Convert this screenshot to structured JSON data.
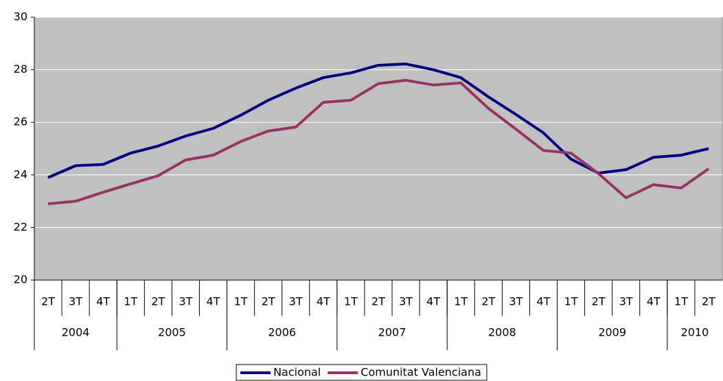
{
  "chart_data": {
    "type": "line",
    "categories": [
      "2T",
      "3T",
      "4T",
      "1T",
      "2T",
      "3T",
      "4T",
      "1T",
      "2T",
      "3T",
      "4T",
      "1T",
      "2T",
      "3T",
      "4T",
      "1T",
      "2T",
      "3T",
      "4T",
      "1T",
      "2T",
      "3T",
      "4T",
      "1T",
      "2T"
    ],
    "x_groups": [
      {
        "label": "2004",
        "count": 3
      },
      {
        "label": "2005",
        "count": 4
      },
      {
        "label": "2006",
        "count": 4
      },
      {
        "label": "2007",
        "count": 4
      },
      {
        "label": "2008",
        "count": 4
      },
      {
        "label": "2009",
        "count": 4
      },
      {
        "label": "2010",
        "count": 2
      }
    ],
    "series": [
      {
        "name": "Nacional",
        "color": "#000080",
        "values": [
          23.9,
          24.35,
          24.4,
          24.83,
          25.1,
          25.48,
          25.77,
          26.27,
          26.84,
          27.3,
          27.7,
          27.88,
          28.17,
          28.22,
          28.0,
          27.7,
          26.97,
          26.3,
          25.6,
          24.6,
          24.07,
          24.2,
          24.67,
          24.75,
          25.0
        ]
      },
      {
        "name": "Comunitat Valenciana",
        "color": "#993366",
        "values": [
          22.9,
          23.0,
          23.34,
          23.66,
          23.97,
          24.57,
          24.75,
          25.27,
          25.67,
          25.82,
          26.76,
          26.84,
          27.47,
          27.6,
          27.42,
          27.5,
          26.53,
          25.74,
          24.93,
          24.83,
          24.05,
          23.13,
          23.63,
          23.5,
          24.23
        ]
      }
    ],
    "ylim": [
      20,
      30
    ],
    "yticks": [
      20,
      22,
      24,
      26,
      28,
      30
    ],
    "grid": true,
    "legend": "bottom",
    "plot_background": "#c0c0c0"
  }
}
